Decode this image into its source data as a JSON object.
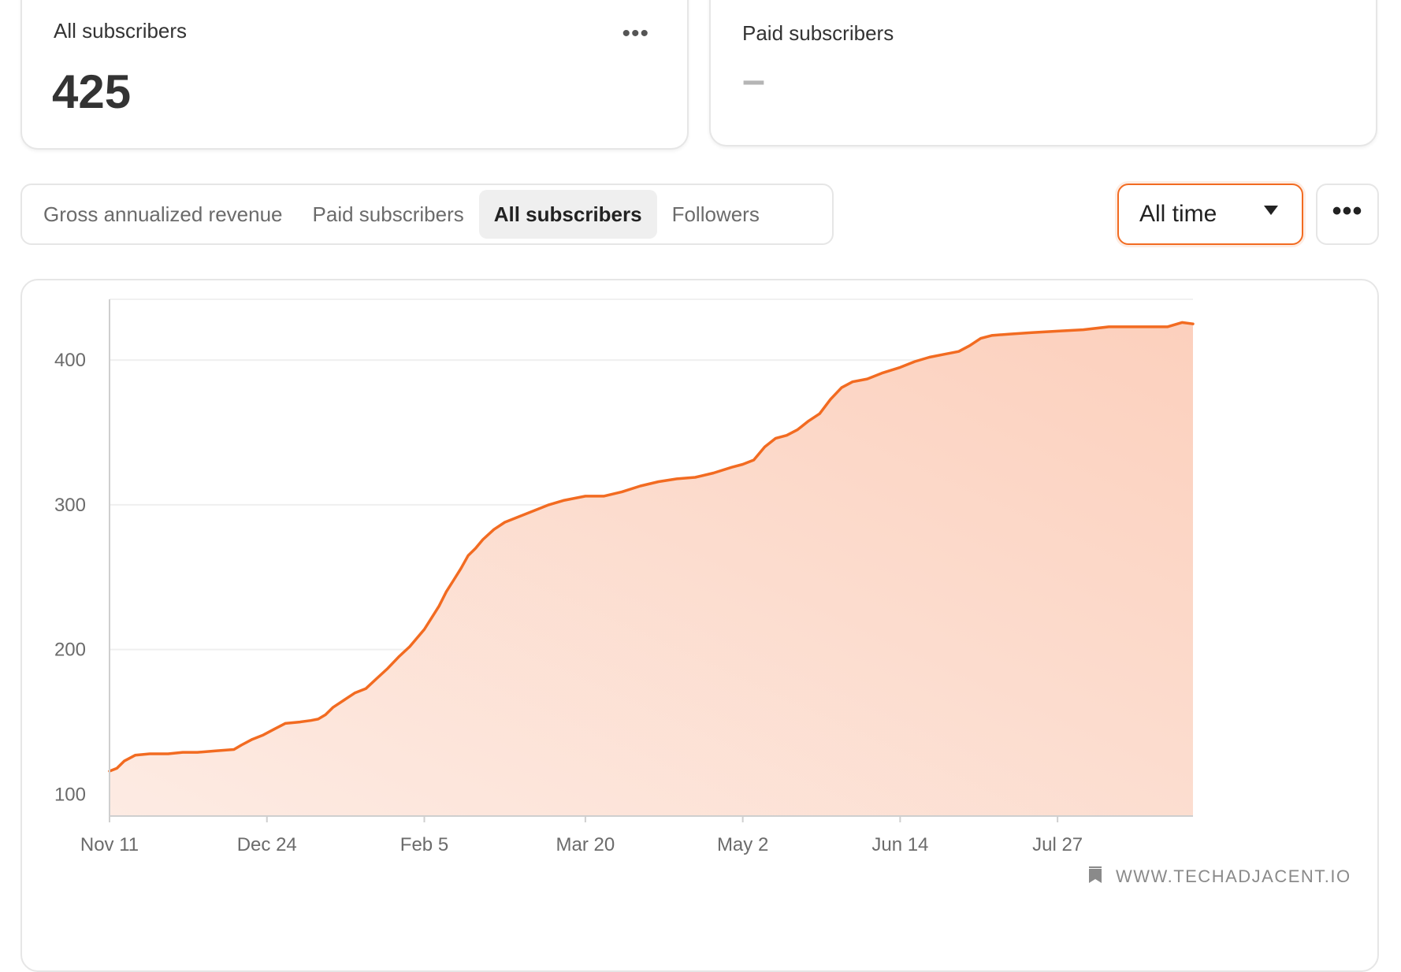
{
  "cards": {
    "all_subscribers": {
      "title": "All subscribers",
      "value": "425",
      "more": "•••"
    },
    "paid_subscribers": {
      "title": "Paid subscribers",
      "value": "–"
    }
  },
  "tabs": [
    {
      "label": "Gross annualized revenue",
      "active": false
    },
    {
      "label": "Paid subscribers",
      "active": false
    },
    {
      "label": "All subscribers",
      "active": true
    },
    {
      "label": "Followers",
      "active": false
    }
  ],
  "time_select": {
    "label": "All time"
  },
  "more_button": {
    "label": "•••"
  },
  "watermark": {
    "text": "WWW.TECHADJACENT.IO",
    "icon": "bookmark-icon"
  },
  "colors": {
    "accent": "#f26b21",
    "fill_top": "#fcd2c0",
    "fill_bottom": "#fde9e1"
  },
  "chart_data": {
    "type": "area",
    "title": "",
    "xlabel": "",
    "ylabel": "",
    "x_ticks": [
      "Nov 11",
      "Dec 24",
      "Feb 5",
      "Mar 20",
      "May 2",
      "Jun 14",
      "Jul 27"
    ],
    "y_ticks": [
      100,
      200,
      300,
      400
    ],
    "xlim": [
      "Nov 11",
      "Sep 2"
    ],
    "ylim": [
      85,
      442
    ],
    "grid": true,
    "series": [
      {
        "name": "All subscribers",
        "points": [
          [
            "Nov 11",
            116
          ],
          [
            "Nov 13",
            118
          ],
          [
            "Nov 15",
            123
          ],
          [
            "Nov 18",
            127
          ],
          [
            "Nov 22",
            128
          ],
          [
            "Nov 27",
            128
          ],
          [
            "Dec 1",
            129
          ],
          [
            "Dec 5",
            129
          ],
          [
            "Dec 10",
            130
          ],
          [
            "Dec 15",
            131
          ],
          [
            "Dec 17",
            134
          ],
          [
            "Dec 20",
            138
          ],
          [
            "Dec 23",
            141
          ],
          [
            "Dec 26",
            145
          ],
          [
            "Dec 29",
            149
          ],
          [
            "Jan 2",
            150
          ],
          [
            "Jan 5",
            151
          ],
          [
            "Jan 7",
            152
          ],
          [
            "Jan 9",
            155
          ],
          [
            "Jan 11",
            160
          ],
          [
            "Jan 14",
            165
          ],
          [
            "Jan 17",
            170
          ],
          [
            "Jan 20",
            173
          ],
          [
            "Jan 23",
            180
          ],
          [
            "Jan 26",
            187
          ],
          [
            "Jan 29",
            195
          ],
          [
            "Feb 1",
            202
          ],
          [
            "Feb 3",
            208
          ],
          [
            "Feb 5",
            214
          ],
          [
            "Feb 7",
            222
          ],
          [
            "Feb 9",
            230
          ],
          [
            "Feb 11",
            240
          ],
          [
            "Feb 13",
            248
          ],
          [
            "Feb 15",
            256
          ],
          [
            "Feb 17",
            265
          ],
          [
            "Feb 19",
            270
          ],
          [
            "Feb 21",
            276
          ],
          [
            "Feb 24",
            283
          ],
          [
            "Feb 27",
            288
          ],
          [
            "Mar 2",
            292
          ],
          [
            "Mar 6",
            296
          ],
          [
            "Mar 10",
            300
          ],
          [
            "Mar 14",
            303
          ],
          [
            "Mar 20",
            306
          ],
          [
            "Mar 25",
            306
          ],
          [
            "Mar 30",
            309
          ],
          [
            "Apr 4",
            313
          ],
          [
            "Apr 9",
            316
          ],
          [
            "Apr 14",
            318
          ],
          [
            "Apr 19",
            319
          ],
          [
            "Apr 24",
            322
          ],
          [
            "Apr 29",
            326
          ],
          [
            "May 2",
            328
          ],
          [
            "May 5",
            331
          ],
          [
            "May 8",
            340
          ],
          [
            "May 11",
            346
          ],
          [
            "May 14",
            348
          ],
          [
            "May 17",
            352
          ],
          [
            "May 20",
            358
          ],
          [
            "May 23",
            363
          ],
          [
            "May 26",
            373
          ],
          [
            "May 29",
            381
          ],
          [
            "Jun 1",
            385
          ],
          [
            "Jun 5",
            387
          ],
          [
            "Jun 9",
            391
          ],
          [
            "Jun 14",
            395
          ],
          [
            "Jun 18",
            399
          ],
          [
            "Jun 22",
            402
          ],
          [
            "Jun 26",
            404
          ],
          [
            "Jun 30",
            406
          ],
          [
            "Jul 3",
            410
          ],
          [
            "Jul 6",
            415
          ],
          [
            "Jul 9",
            417
          ],
          [
            "Jul 14",
            418
          ],
          [
            "Jul 20",
            419
          ],
          [
            "Jul 27",
            420
          ],
          [
            "Aug 3",
            421
          ],
          [
            "Aug 10",
            423
          ],
          [
            "Aug 16",
            423
          ],
          [
            "Aug 21",
            423
          ],
          [
            "Aug 26",
            423
          ],
          [
            "Aug 30",
            426
          ],
          [
            "Sep 2",
            425
          ]
        ]
      }
    ],
    "annotations": [
      "WWW.TECHADJACENT.IO"
    ]
  }
}
